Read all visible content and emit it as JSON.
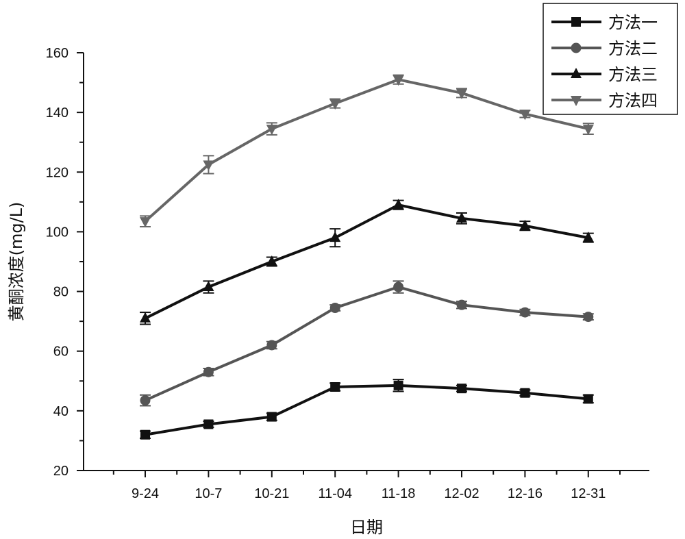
{
  "chart_data": {
    "type": "line",
    "xlabel": "日期",
    "ylabel": "黄酮浓度(mg/L)",
    "categories": [
      "9-24",
      "10-7",
      "10-21",
      "11-04",
      "11-18",
      "12-02",
      "12-16",
      "12-31"
    ],
    "ylim": [
      20,
      160
    ],
    "yticks": [
      20,
      40,
      60,
      80,
      100,
      120,
      140,
      160
    ],
    "grid": false,
    "legend_position": "top-right",
    "series": [
      {
        "name": "方法一",
        "marker": "square",
        "color": "#111111",
        "values": [
          32,
          35.5,
          38,
          48,
          48.5,
          47.5,
          46,
          44
        ],
        "errors": [
          1.2,
          1.0,
          1.2,
          1.3,
          2.0,
          1.0,
          1.0,
          1.3
        ]
      },
      {
        "name": "方法二",
        "marker": "circle",
        "color": "#555555",
        "values": [
          43.5,
          53,
          62,
          74.5,
          81.5,
          75.5,
          73,
          71.5
        ],
        "errors": [
          1.8,
          1.2,
          1.2,
          1.0,
          2.0,
          1.2,
          1.0,
          1.0
        ]
      },
      {
        "name": "方法三",
        "marker": "triangle-up",
        "color": "#111111",
        "values": [
          71,
          81.5,
          90,
          98,
          109,
          104.5,
          102,
          98
        ],
        "errors": [
          2.0,
          2.0,
          1.5,
          3.0,
          1.5,
          1.8,
          1.5,
          1.5
        ]
      },
      {
        "name": "方法四",
        "marker": "triangle-down",
        "color": "#666666",
        "values": [
          103.5,
          122.5,
          134.5,
          143,
          151,
          146.5,
          139.5,
          134.5
        ],
        "errors": [
          1.8,
          3.0,
          2.0,
          1.5,
          1.5,
          1.5,
          1.2,
          1.8
        ]
      }
    ]
  }
}
